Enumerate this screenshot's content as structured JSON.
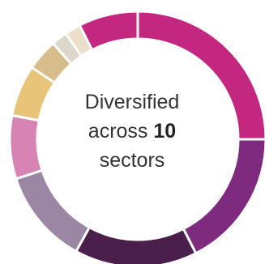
{
  "center_label": {
    "line1": "Diversified",
    "line2_prefix": "across ",
    "line2_count": "10",
    "line3": "sectors"
  },
  "chart_data": {
    "type": "pie",
    "variant": "donut",
    "sector_count": 10,
    "title": "",
    "slices": [
      {
        "share": 25.0,
        "color": "#c4277f"
      },
      {
        "share": 17.5,
        "color": "#7d2a7f"
      },
      {
        "share": 15.5,
        "color": "#4a1f4c"
      },
      {
        "share": 12.0,
        "color": "#9b86a4"
      },
      {
        "share": 8.0,
        "color": "#d784b5"
      },
      {
        "share": 6.5,
        "color": "#e8c37a"
      },
      {
        "share": 4.0,
        "color": "#d7bc8c"
      },
      {
        "share": 2.0,
        "color": "#ddd6cb"
      },
      {
        "share": 2.0,
        "color": "#ebdfcc"
      },
      {
        "share": 7.5,
        "color": "#c4277f"
      }
    ]
  }
}
